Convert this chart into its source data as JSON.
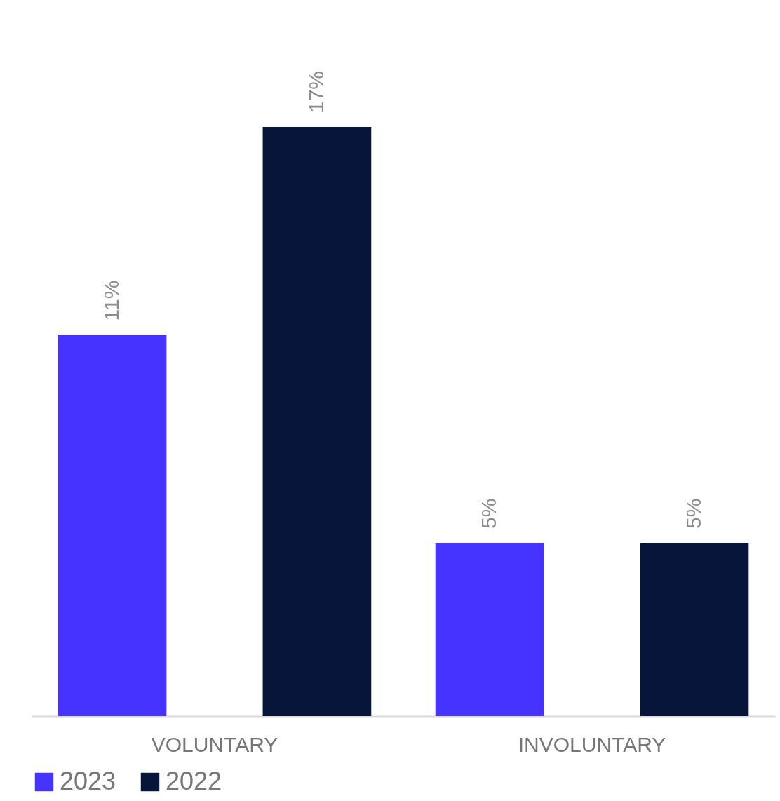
{
  "chart_data": {
    "type": "bar",
    "categories": [
      "VOLUNTARY",
      "INVOLUNTARY"
    ],
    "series": [
      {
        "name": "2023",
        "color": "#4733ff",
        "values": [
          11,
          5
        ],
        "value_labels": [
          "11%",
          "5%"
        ]
      },
      {
        "name": "2022",
        "color": "#061539",
        "values": [
          17,
          5
        ],
        "value_labels": [
          "17%",
          "5%"
        ]
      }
    ],
    "legend": "bottom left",
    "grid": false
  }
}
